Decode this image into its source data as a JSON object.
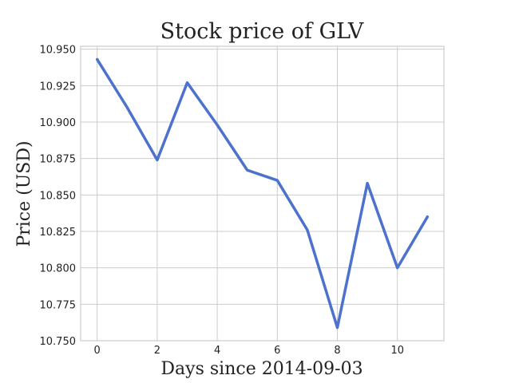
{
  "chart_data": {
    "type": "line",
    "title": "Stock price of GLV",
    "xlabel": "Days since 2014-09-03",
    "ylabel": "Price (USD)",
    "xlim": [
      -0.55,
      11.55
    ],
    "ylim": [
      10.75,
      10.952
    ],
    "x_ticks": [
      0,
      2,
      4,
      6,
      8,
      10
    ],
    "y_ticks": [
      10.75,
      10.775,
      10.8,
      10.825,
      10.85,
      10.875,
      10.9,
      10.925,
      10.95
    ],
    "grid": true,
    "legend": "none",
    "series": [
      {
        "color": "#4C72CE",
        "x": [
          0,
          1,
          2,
          3,
          4,
          5,
          6,
          7,
          8,
          9,
          10,
          11
        ],
        "values": [
          10.943,
          10.91,
          10.874,
          10.927,
          10.898,
          10.867,
          10.86,
          10.826,
          10.759,
          10.858,
          10.8,
          10.835
        ]
      }
    ]
  }
}
